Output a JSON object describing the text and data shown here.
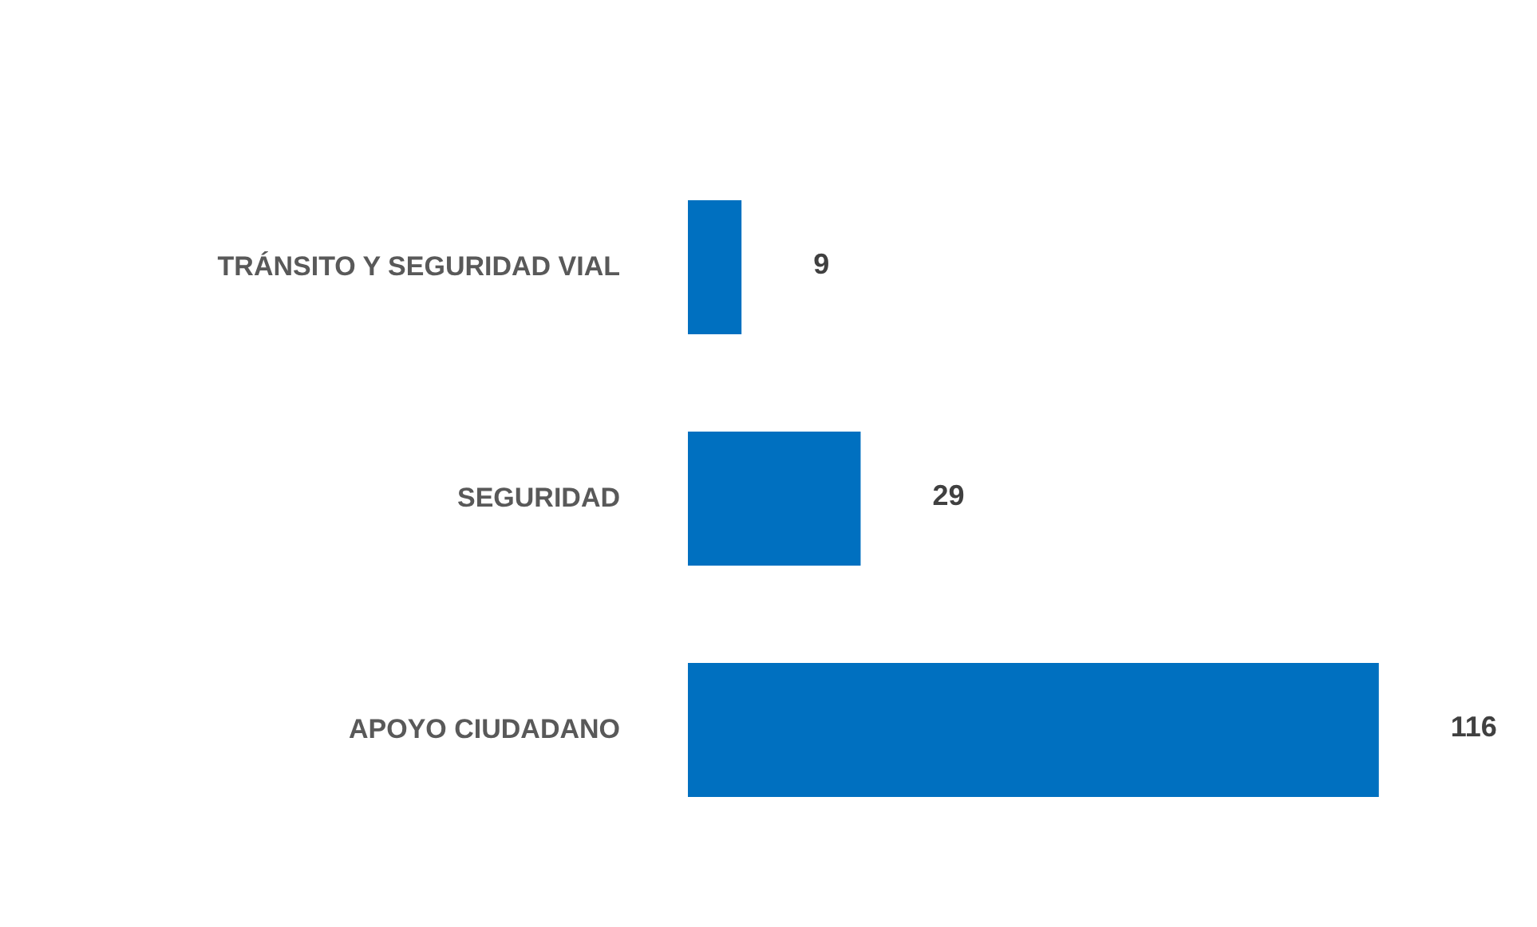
{
  "chart_data": {
    "type": "bar",
    "orientation": "horizontal",
    "categories": [
      "TRÁNSITO Y SEGURIDAD VIAL",
      "SEGURIDAD",
      "APOYO CIUDADANO"
    ],
    "values": [
      9,
      29,
      116
    ],
    "color": "#0070c0",
    "data_labels": true
  }
}
